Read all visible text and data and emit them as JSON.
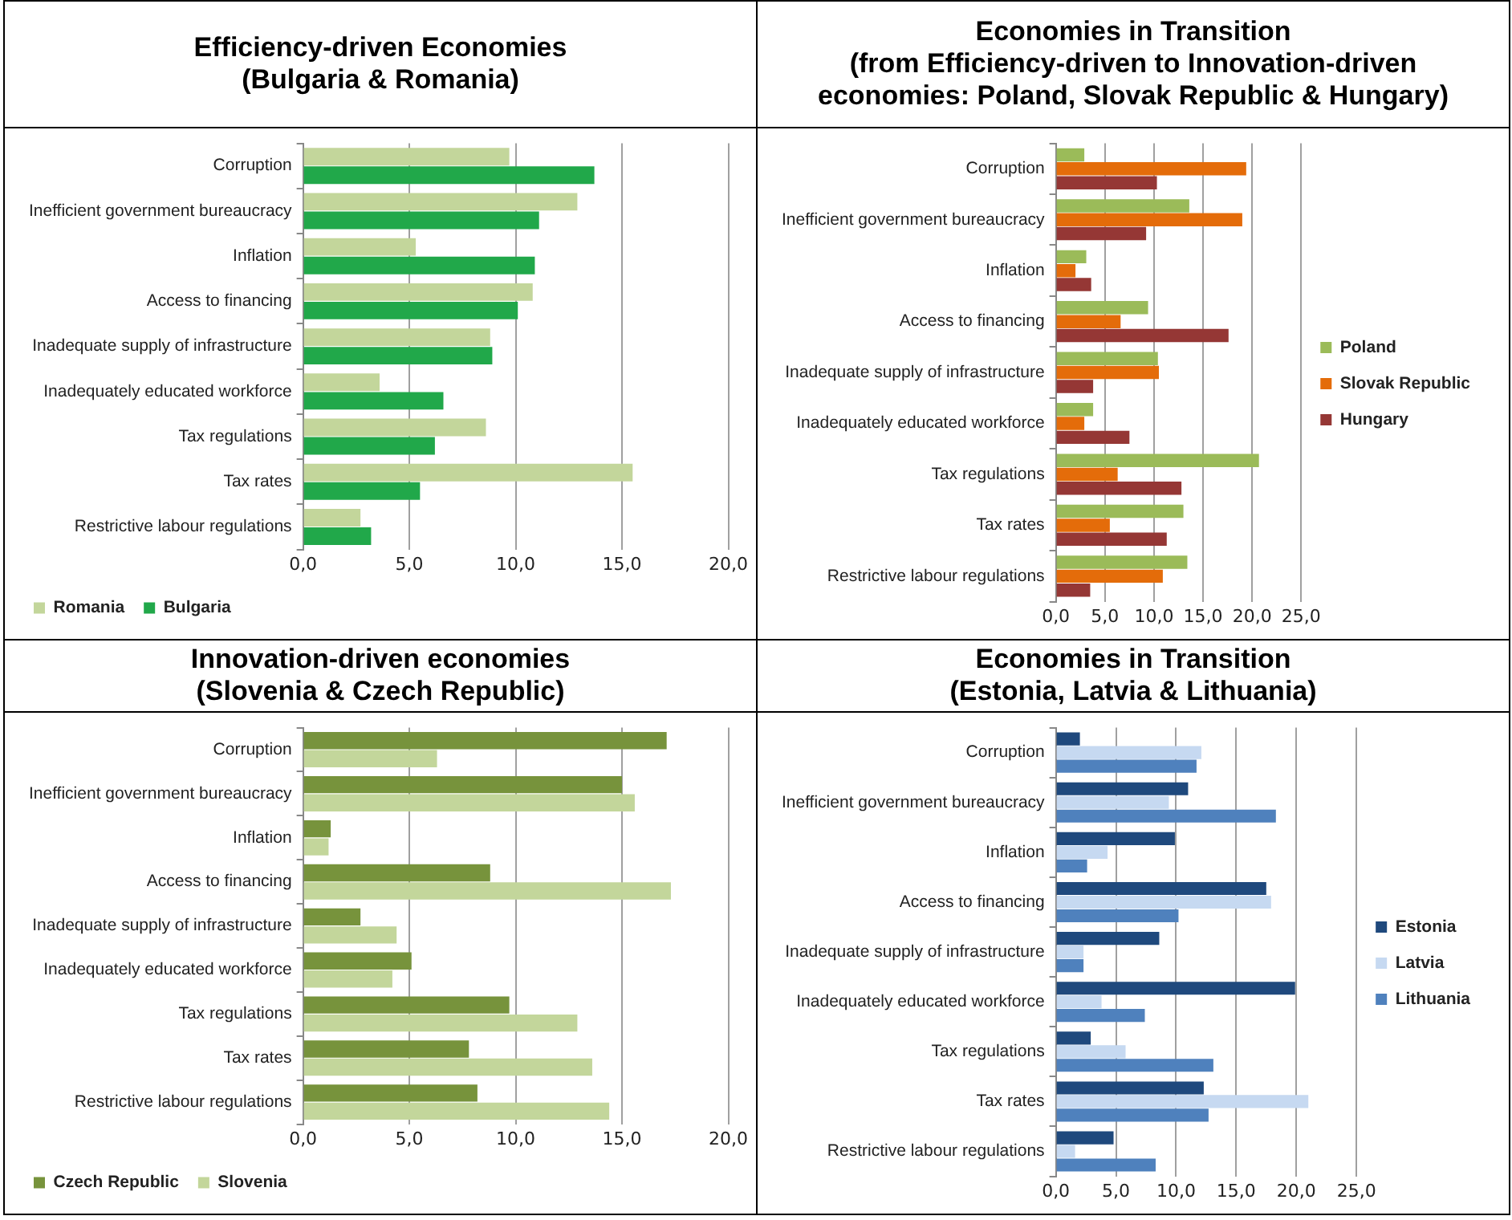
{
  "chart_data": [
    {
      "type": "bar",
      "orientation": "horizontal",
      "title": "Efficiency-driven Economies\n(Bulgaria & Romania)",
      "categories": [
        "Corruption",
        "Inefficient government bureaucracy",
        "Inflation",
        "Access to financing",
        "Inadequate supply of infrastructure",
        "Inadequately educated workforce",
        "Tax regulations",
        "Tax rates",
        "Restrictive labour regulations"
      ],
      "series": [
        {
          "name": "Romania",
          "color": "#c3d69b",
          "values": [
            9.7,
            12.9,
            5.3,
            10.8,
            8.8,
            3.6,
            8.6,
            15.5,
            2.7
          ]
        },
        {
          "name": "Bulgaria",
          "color": "#21a84a",
          "values": [
            13.7,
            11.1,
            10.9,
            10.1,
            8.9,
            6.6,
            6.2,
            5.5,
            3.2
          ]
        }
      ],
      "xlim": [
        0,
        20
      ],
      "xticks": [
        {
          "value": 0,
          "label": "0,0"
        },
        {
          "value": 5,
          "label": "5,0"
        },
        {
          "value": 10,
          "label": "10,0"
        },
        {
          "value": 15,
          "label": "15,0"
        },
        {
          "value": 20,
          "label": "20,0"
        }
      ],
      "grid": "x",
      "legend": "bottom left"
    },
    {
      "type": "bar",
      "orientation": "horizontal",
      "title": "Economies in Transition\n(from Efficiency-driven to Innovation-driven\neconomies: Poland, Slovak Republic & Hungary)",
      "categories": [
        "Corruption",
        "Inefficient government bureaucracy",
        "Inflation",
        "Access to financing",
        "Inadequate supply of infrastructure",
        "Inadequately educated workforce",
        "Tax regulations",
        "Tax rates",
        "Restrictive labour regulations"
      ],
      "series": [
        {
          "name": "Poland",
          "color": "#9bbb59",
          "values": [
            2.9,
            13.6,
            3.1,
            9.4,
            10.4,
            3.8,
            20.7,
            13.0,
            13.4
          ]
        },
        {
          "name": "Slovak Republic",
          "color": "#e46c0a",
          "values": [
            19.4,
            19.0,
            2.0,
            6.6,
            10.5,
            2.9,
            6.3,
            5.5,
            10.9
          ]
        },
        {
          "name": "Hungary",
          "color": "#953735",
          "values": [
            10.3,
            9.2,
            3.6,
            17.6,
            3.8,
            7.5,
            12.8,
            11.3,
            3.5
          ]
        }
      ],
      "xlim": [
        0,
        25
      ],
      "xticks": [
        {
          "value": 0,
          "label": "0,0"
        },
        {
          "value": 5,
          "label": "5,0"
        },
        {
          "value": 10,
          "label": "10,0"
        },
        {
          "value": 15,
          "label": "15,0"
        },
        {
          "value": 20,
          "label": "20,0"
        },
        {
          "value": 25,
          "label": "25,0"
        }
      ],
      "grid": "x",
      "legend": "right"
    },
    {
      "type": "bar",
      "orientation": "horizontal",
      "title": "Innovation-driven economies\n(Slovenia & Czech Republic)",
      "categories": [
        "Corruption",
        "Inefficient government bureaucracy",
        "Inflation",
        "Access to financing",
        "Inadequate supply of infrastructure",
        "Inadequately educated workforce",
        "Tax regulations",
        "Tax rates",
        "Restrictive labour regulations"
      ],
      "series": [
        {
          "name": "Czech Republic",
          "color": "#77933c",
          "values": [
            17.1,
            15.0,
            1.3,
            8.8,
            2.7,
            5.1,
            9.7,
            7.8,
            8.2
          ]
        },
        {
          "name": "Slovenia",
          "color": "#c3d69b",
          "values": [
            6.3,
            15.6,
            1.2,
            17.3,
            4.4,
            4.2,
            12.9,
            13.6,
            14.4
          ]
        }
      ],
      "xlim": [
        0,
        20
      ],
      "xticks": [
        {
          "value": 0,
          "label": "0,0"
        },
        {
          "value": 5,
          "label": "5,0"
        },
        {
          "value": 10,
          "label": "10,0"
        },
        {
          "value": 15,
          "label": "15,0"
        },
        {
          "value": 20,
          "label": "20,0"
        }
      ],
      "grid": "x",
      "legend": "bottom left"
    },
    {
      "type": "bar",
      "orientation": "horizontal",
      "title": "Economies in Transition\n(Estonia, Latvia & Lithuania)",
      "categories": [
        "Corruption",
        "Inefficient government bureaucracy",
        "Inflation",
        "Access to financing",
        "Inadequate supply of infrastructure",
        "Inadequately educated workforce",
        "Tax regulations",
        "Tax rates",
        "Restrictive labour regulations"
      ],
      "series": [
        {
          "name": "Estonia",
          "color": "#1f497d",
          "values": [
            2.0,
            11.0,
            9.9,
            17.5,
            8.6,
            19.9,
            2.9,
            12.3,
            4.8
          ]
        },
        {
          "name": "Latvia",
          "color": "#c6d9f1",
          "values": [
            12.1,
            9.4,
            4.3,
            17.9,
            2.3,
            3.8,
            5.8,
            21.0,
            1.6
          ]
        },
        {
          "name": "Lithuania",
          "color": "#4f81bd",
          "values": [
            11.7,
            18.3,
            2.6,
            10.2,
            2.3,
            7.4,
            13.1,
            12.7,
            8.3
          ]
        }
      ],
      "xlim": [
        0,
        25
      ],
      "xticks": [
        {
          "value": 0,
          "label": "0,0"
        },
        {
          "value": 5,
          "label": "5,0"
        },
        {
          "value": 10,
          "label": "10,0"
        },
        {
          "value": 15,
          "label": "15,0"
        },
        {
          "value": 20,
          "label": "20,0"
        },
        {
          "value": 25,
          "label": "25,0"
        }
      ],
      "grid": "x",
      "legend": "right"
    }
  ]
}
